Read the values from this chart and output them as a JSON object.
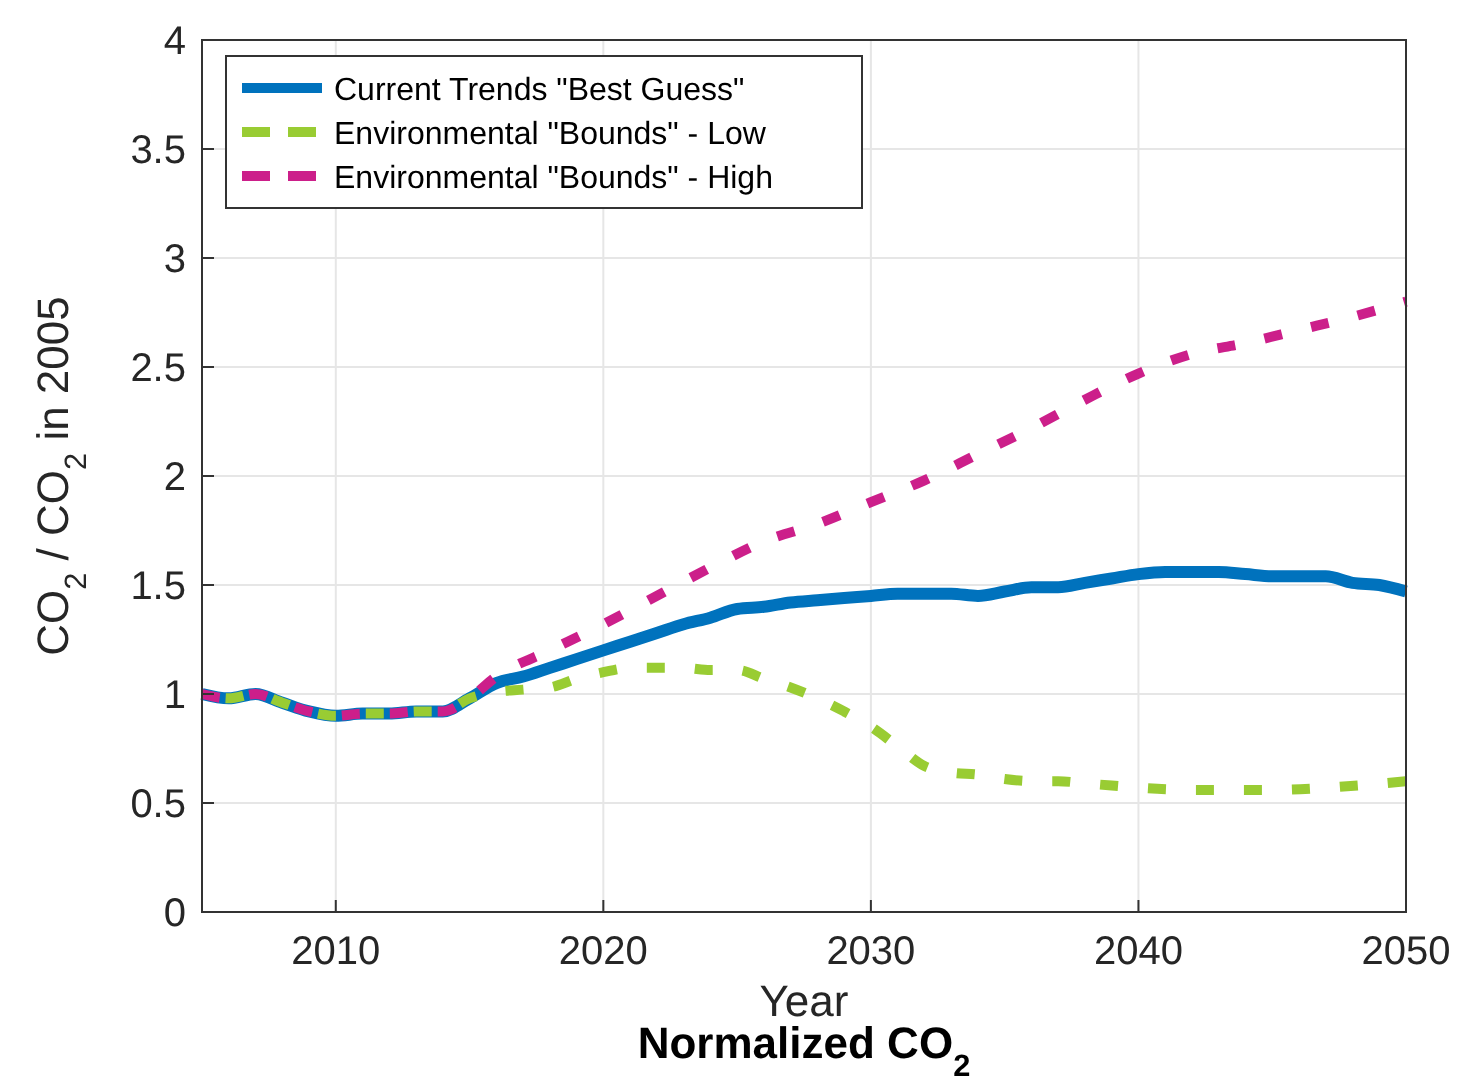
{
  "chart_data": {
    "type": "line",
    "xlabel": "Year",
    "ylabel": "CO$_{2}$ / CO$_{2}$ in 2005",
    "annotations": [
      "Normalized CO$_{2}$"
    ],
    "xlim": [
      2005,
      2050
    ],
    "xticks": [
      2010,
      2020,
      2030,
      2040,
      2050
    ],
    "ylim": [
      0,
      4
    ],
    "yticks": [
      0,
      0.5,
      1,
      1.5,
      2,
      2.5,
      3,
      3.5,
      4
    ],
    "grid": true,
    "legend": "top left",
    "series": [
      {
        "name": "Current Trends \"Best Guess\"",
        "color": "#0072bd",
        "line_style": "solid",
        "x": [
          2005,
          2006,
          2007,
          2008,
          2009,
          2010,
          2011,
          2012,
          2013,
          2014,
          2015,
          2016,
          2017,
          2018,
          2019,
          2020,
          2021,
          2022,
          2023,
          2024,
          2025,
          2026,
          2027,
          2028,
          2029,
          2030,
          2031,
          2032,
          2033,
          2034,
          2035,
          2036,
          2037,
          2038,
          2039,
          2040,
          2041,
          2042,
          2043,
          2044,
          2045,
          2046,
          2047,
          2048,
          2049,
          2050
        ],
        "values": [
          1.0,
          0.98,
          1.0,
          0.96,
          0.92,
          0.9,
          0.91,
          0.91,
          0.92,
          0.92,
          0.98,
          1.05,
          1.08,
          1.12,
          1.16,
          1.2,
          1.24,
          1.28,
          1.32,
          1.35,
          1.39,
          1.4,
          1.42,
          1.43,
          1.44,
          1.45,
          1.46,
          1.46,
          1.46,
          1.45,
          1.47,
          1.49,
          1.49,
          1.51,
          1.53,
          1.55,
          1.56,
          1.56,
          1.56,
          1.55,
          1.54,
          1.54,
          1.54,
          1.51,
          1.5,
          1.47
        ]
      },
      {
        "name": "Environmental \"Bounds\" - Low",
        "color": "#99cc33",
        "line_style": "dashed",
        "x": [
          2005,
          2006,
          2007,
          2008,
          2009,
          2010,
          2011,
          2012,
          2013,
          2014,
          2015,
          2016,
          2017,
          2018,
          2019,
          2020,
          2021,
          2022,
          2023,
          2024,
          2025,
          2026,
          2027,
          2028,
          2029,
          2030,
          2031,
          2032,
          2033,
          2034,
          2035,
          2036,
          2037,
          2038,
          2039,
          2040,
          2042,
          2045,
          2047,
          2050
        ],
        "values": [
          1.0,
          0.98,
          1.0,
          0.96,
          0.92,
          0.9,
          0.91,
          0.91,
          0.92,
          0.92,
          0.98,
          1.01,
          1.02,
          1.03,
          1.07,
          1.1,
          1.12,
          1.12,
          1.12,
          1.11,
          1.11,
          1.07,
          1.03,
          0.98,
          0.92,
          0.85,
          0.76,
          0.67,
          0.64,
          0.63,
          0.61,
          0.6,
          0.6,
          0.59,
          0.58,
          0.57,
          0.56,
          0.56,
          0.57,
          0.6
        ]
      },
      {
        "name": "Environmental \"Bounds\" - High",
        "color": "#cc1f8a",
        "line_style": "dashed",
        "x": [
          2005,
          2006,
          2007,
          2008,
          2009,
          2010,
          2011,
          2012,
          2013,
          2014,
          2015,
          2016,
          2018,
          2020,
          2022,
          2024,
          2026,
          2028,
          2030,
          2032,
          2034,
          2036,
          2038,
          2040,
          2042,
          2044,
          2046,
          2048,
          2050
        ],
        "values": [
          1.0,
          0.98,
          1.0,
          0.96,
          0.92,
          0.9,
          0.91,
          0.91,
          0.92,
          0.92,
          0.98,
          1.08,
          1.2,
          1.32,
          1.45,
          1.58,
          1.7,
          1.78,
          1.88,
          1.98,
          2.1,
          2.22,
          2.35,
          2.47,
          2.56,
          2.61,
          2.67,
          2.73,
          2.8
        ]
      }
    ]
  }
}
